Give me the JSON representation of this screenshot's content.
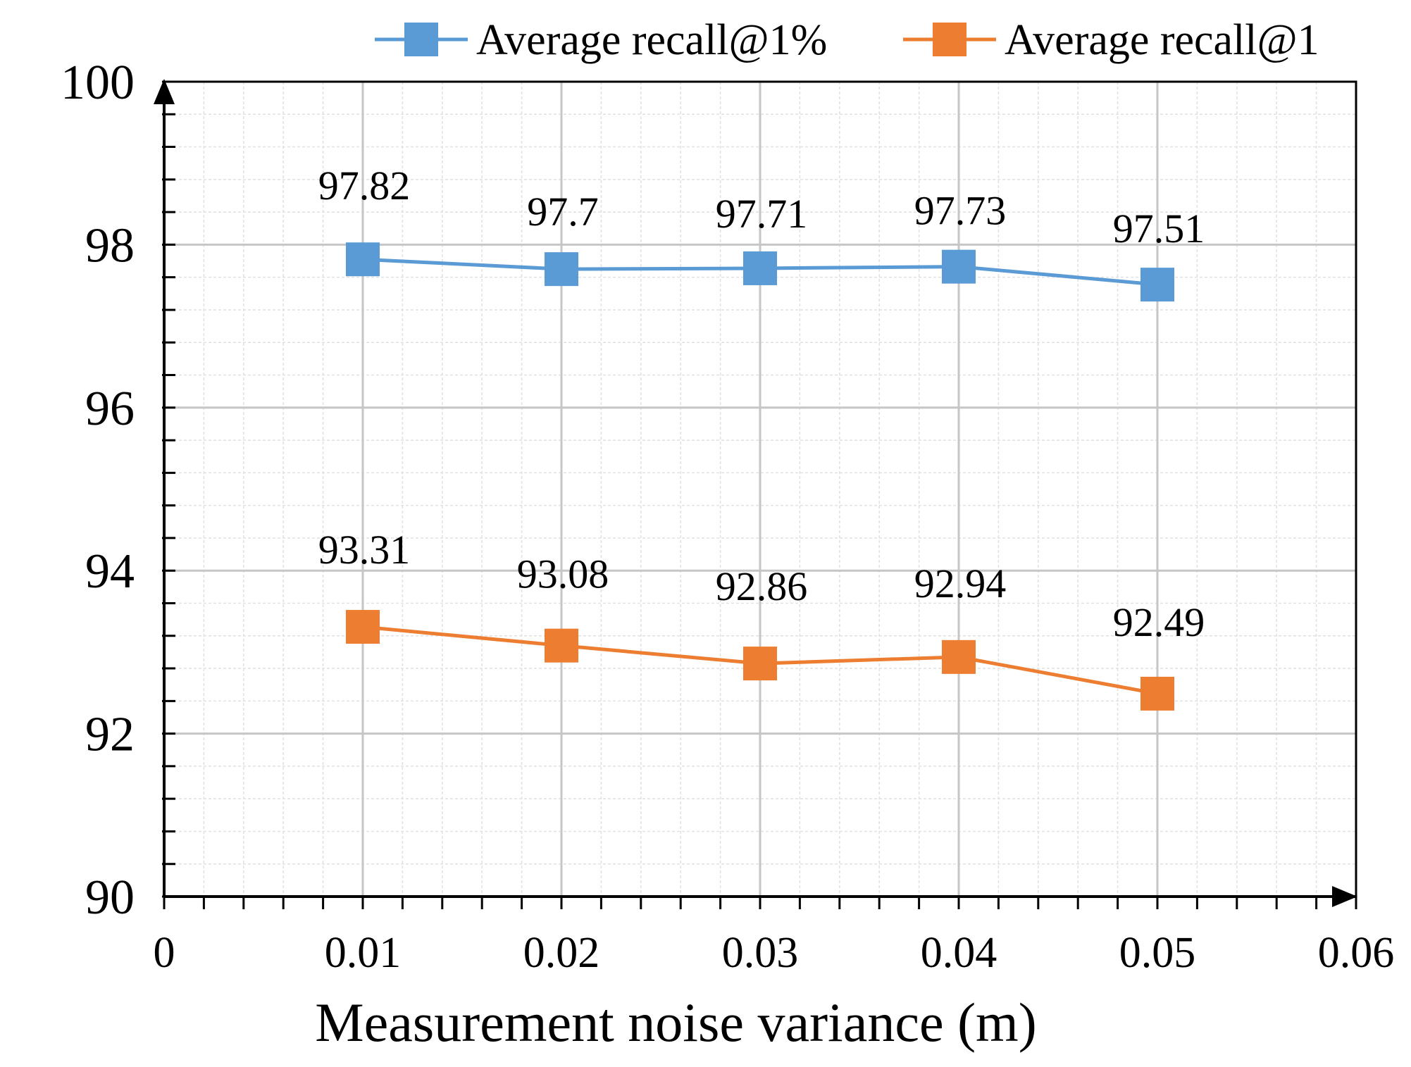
{
  "chart_data": {
    "type": "line",
    "title": "",
    "xlabel": "Measurement noise variance (m)",
    "ylabel": "",
    "xlim": [
      0,
      0.06
    ],
    "ylim": [
      90,
      100
    ],
    "x_ticks": [
      0,
      0.01,
      0.02,
      0.03,
      0.04,
      0.05,
      0.06
    ],
    "x_tick_labels": [
      "0",
      "0.01",
      "0.02",
      "0.03",
      "0.04",
      "0.05",
      "0.06"
    ],
    "y_ticks": [
      90,
      92,
      94,
      96,
      98,
      100
    ],
    "y_tick_labels": [
      "90",
      "92",
      "94",
      "96",
      "98",
      "100"
    ],
    "grid": true,
    "legend_position": "top",
    "x": [
      0.01,
      0.02,
      0.03,
      0.04,
      0.05
    ],
    "series": [
      {
        "name": "Average recall@1%",
        "color": "#5B9BD5",
        "marker": "square",
        "values": [
          97.82,
          97.7,
          97.71,
          97.73,
          97.51
        ],
        "labels": [
          "97.82",
          "97.7",
          "97.71",
          "97.73",
          "97.51"
        ]
      },
      {
        "name": "Average recall@1",
        "color": "#ED7D31",
        "marker": "square",
        "values": [
          93.31,
          93.08,
          92.86,
          92.94,
          92.49
        ],
        "labels": [
          "93.31",
          "93.08",
          "92.86",
          "92.94",
          "92.49"
        ]
      }
    ]
  }
}
